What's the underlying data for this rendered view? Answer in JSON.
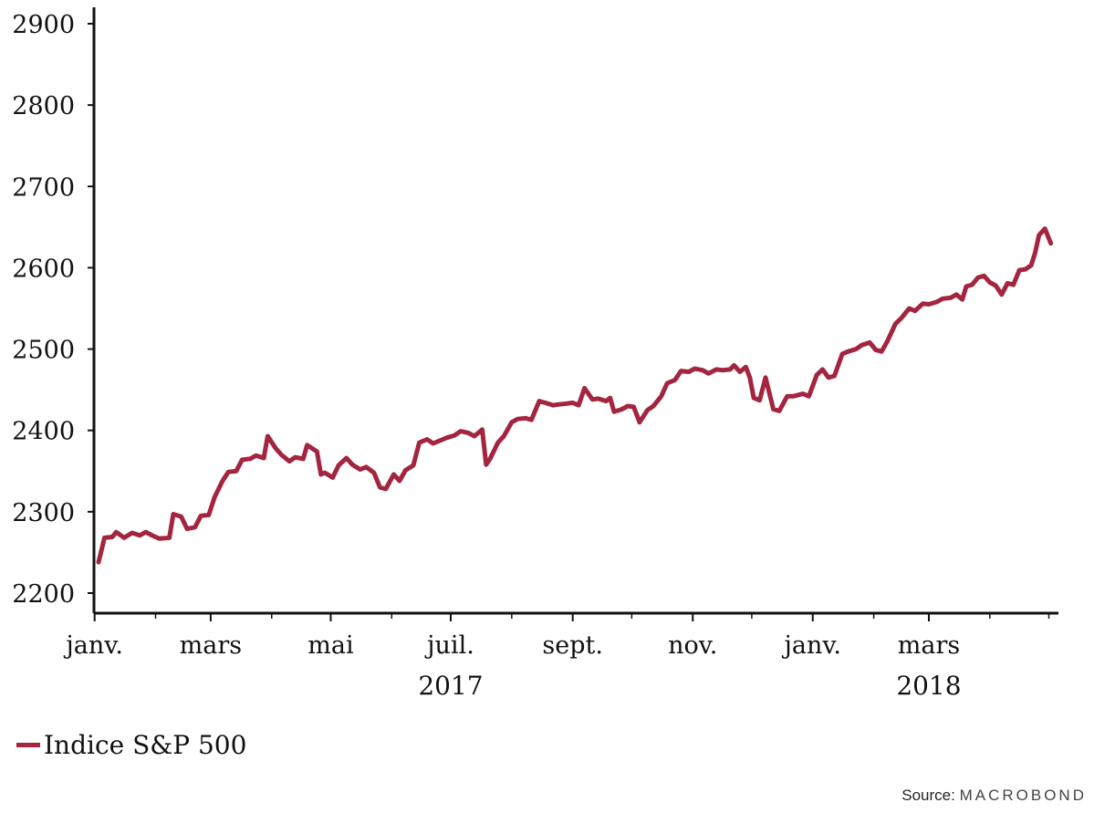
{
  "chart_data": {
    "type": "line",
    "title": "",
    "xlabel": "",
    "ylabel": "",
    "ylim": [
      2200,
      2900
    ],
    "xlim": [
      "2017-01-03",
      "2018-05-04"
    ],
    "y_ticks": [
      2200,
      2300,
      2400,
      2500,
      2600,
      2700,
      2800,
      2900
    ],
    "x_ticks": [
      {
        "date": "2017-01-01",
        "label": "janv."
      },
      {
        "date": "2017-03-01",
        "label": "mars"
      },
      {
        "date": "2017-05-01",
        "label": "mai"
      },
      {
        "date": "2017-07-01",
        "label": "juil."
      },
      {
        "date": "2017-09-01",
        "label": "sept."
      },
      {
        "date": "2017-11-01",
        "label": "nov."
      },
      {
        "date": "2018-01-01",
        "label": "janv."
      },
      {
        "date": "2018-03-01",
        "label": "mars"
      }
    ],
    "year_labels": [
      {
        "date": "2017-07-01",
        "label": "2017"
      },
      {
        "date": "2018-03-01",
        "label": "2018"
      }
    ],
    "grid": false,
    "legend_position": "bottom-left",
    "series": [
      {
        "name": "Indice S&P 500",
        "color": "#a3253f",
        "points": [
          [
            "2017-01-03",
            2238
          ],
          [
            "2017-01-06",
            2268
          ],
          [
            "2017-01-10",
            2269
          ],
          [
            "2017-01-12",
            2275
          ],
          [
            "2017-01-16",
            2268
          ],
          [
            "2017-01-20",
            2274
          ],
          [
            "2017-01-24",
            2271
          ],
          [
            "2017-01-27",
            2275
          ],
          [
            "2017-01-31",
            2270
          ],
          [
            "2017-02-03",
            2267
          ],
          [
            "2017-02-08",
            2268
          ],
          [
            "2017-02-10",
            2297
          ],
          [
            "2017-02-14",
            2294
          ],
          [
            "2017-02-17",
            2279
          ],
          [
            "2017-02-21",
            2281
          ],
          [
            "2017-02-24",
            2295
          ],
          [
            "2017-02-28",
            2296
          ],
          [
            "2017-03-03",
            2318
          ],
          [
            "2017-03-07",
            2338
          ],
          [
            "2017-03-10",
            2349
          ],
          [
            "2017-03-14",
            2350
          ],
          [
            "2017-03-17",
            2364
          ],
          [
            "2017-03-21",
            2365
          ],
          [
            "2017-03-24",
            2369
          ],
          [
            "2017-03-28",
            2366
          ],
          [
            "2017-03-30",
            2393
          ],
          [
            "2017-04-03",
            2378
          ],
          [
            "2017-04-06",
            2370
          ],
          [
            "2017-04-10",
            2362
          ],
          [
            "2017-04-13",
            2367
          ],
          [
            "2017-04-17",
            2365
          ],
          [
            "2017-04-19",
            2382
          ],
          [
            "2017-04-24",
            2374
          ],
          [
            "2017-04-26",
            2346
          ],
          [
            "2017-04-28",
            2348
          ],
          [
            "2017-05-02",
            2342
          ],
          [
            "2017-05-05",
            2357
          ],
          [
            "2017-05-09",
            2366
          ],
          [
            "2017-05-12",
            2358
          ],
          [
            "2017-05-16",
            2352
          ],
          [
            "2017-05-19",
            2355
          ],
          [
            "2017-05-23",
            2348
          ],
          [
            "2017-05-26",
            2330
          ],
          [
            "2017-05-29",
            2328
          ],
          [
            "2017-06-02",
            2346
          ],
          [
            "2017-06-05",
            2338
          ],
          [
            "2017-06-08",
            2351
          ],
          [
            "2017-06-12",
            2357
          ],
          [
            "2017-06-15",
            2385
          ],
          [
            "2017-06-19",
            2389
          ],
          [
            "2017-06-22",
            2384
          ],
          [
            "2017-06-26",
            2388
          ],
          [
            "2017-06-29",
            2391
          ],
          [
            "2017-07-03",
            2394
          ],
          [
            "2017-07-06",
            2399
          ],
          [
            "2017-07-10",
            2397
          ],
          [
            "2017-07-13",
            2393
          ],
          [
            "2017-07-17",
            2401
          ],
          [
            "2017-07-19",
            2358
          ],
          [
            "2017-07-21",
            2365
          ],
          [
            "2017-07-25",
            2385
          ],
          [
            "2017-07-28",
            2393
          ],
          [
            "2017-08-01",
            2410
          ],
          [
            "2017-08-04",
            2414
          ],
          [
            "2017-08-08",
            2415
          ],
          [
            "2017-08-11",
            2413
          ],
          [
            "2017-08-15",
            2436
          ],
          [
            "2017-08-18",
            2434
          ],
          [
            "2017-08-22",
            2431
          ],
          [
            "2017-08-25",
            2432
          ],
          [
            "2017-08-29",
            2433
          ],
          [
            "2017-09-01",
            2434
          ],
          [
            "2017-09-04",
            2431
          ],
          [
            "2017-09-07",
            2452
          ],
          [
            "2017-09-11",
            2438
          ],
          [
            "2017-09-14",
            2439
          ],
          [
            "2017-09-18",
            2436
          ],
          [
            "2017-09-20",
            2440
          ],
          [
            "2017-09-22",
            2423
          ],
          [
            "2017-09-26",
            2426
          ],
          [
            "2017-09-29",
            2430
          ],
          [
            "2017-10-02",
            2429
          ],
          [
            "2017-10-05",
            2410
          ],
          [
            "2017-10-09",
            2425
          ],
          [
            "2017-10-12",
            2430
          ],
          [
            "2017-10-16",
            2442
          ],
          [
            "2017-10-19",
            2458
          ],
          [
            "2017-10-23",
            2462
          ],
          [
            "2017-10-26",
            2473
          ],
          [
            "2017-10-30",
            2472
          ],
          [
            "2017-11-02",
            2476
          ],
          [
            "2017-11-06",
            2474
          ],
          [
            "2017-11-09",
            2470
          ],
          [
            "2017-11-13",
            2475
          ],
          [
            "2017-11-16",
            2474
          ],
          [
            "2017-11-20",
            2475
          ],
          [
            "2017-11-22",
            2480
          ],
          [
            "2017-11-25",
            2472
          ],
          [
            "2017-11-28",
            2478
          ],
          [
            "2017-11-30",
            2465
          ],
          [
            "2017-12-02",
            2440
          ],
          [
            "2017-12-05",
            2437
          ],
          [
            "2017-12-08",
            2465
          ],
          [
            "2017-12-12",
            2426
          ],
          [
            "2017-12-15",
            2424
          ],
          [
            "2017-12-19",
            2442
          ],
          [
            "2017-12-22",
            2442
          ],
          [
            "2017-12-27",
            2445
          ],
          [
            "2017-12-30",
            2442
          ],
          [
            "2018-01-03",
            2468
          ],
          [
            "2018-01-06",
            2475
          ],
          [
            "2018-01-09",
            2465
          ],
          [
            "2018-01-12",
            2467
          ],
          [
            "2018-01-16",
            2494
          ],
          [
            "2018-01-19",
            2497
          ],
          [
            "2018-01-23",
            2500
          ],
          [
            "2018-01-26",
            2505
          ],
          [
            "2018-01-30",
            2508
          ],
          [
            "2018-02-02",
            2499
          ],
          [
            "2018-02-05",
            2497
          ],
          [
            "2018-02-08",
            2510
          ],
          [
            "2018-02-12",
            2531
          ],
          [
            "2018-02-15",
            2538
          ],
          [
            "2018-02-19",
            2550
          ],
          [
            "2018-02-22",
            2547
          ],
          [
            "2018-02-26",
            2556
          ],
          [
            "2018-03-01",
            2555
          ],
          [
            "2018-03-05",
            2558
          ],
          [
            "2018-03-08",
            2562
          ],
          [
            "2018-03-12",
            2563
          ],
          [
            "2018-03-15",
            2567
          ],
          [
            "2018-03-18",
            2561
          ],
          [
            "2018-03-20",
            2577
          ],
          [
            "2018-03-23",
            2579
          ],
          [
            "2018-03-26",
            2588
          ],
          [
            "2018-03-29",
            2590
          ],
          [
            "2018-04-01",
            2582
          ],
          [
            "2018-04-04",
            2578
          ],
          [
            "2018-04-07",
            2567
          ],
          [
            "2018-04-10",
            2581
          ],
          [
            "2018-04-13",
            2579
          ],
          [
            "2018-04-16",
            2597
          ],
          [
            "2018-04-19",
            2598
          ],
          [
            "2018-04-22",
            2603
          ],
          [
            "2018-04-24",
            2618
          ],
          [
            "2018-04-26",
            2640
          ],
          [
            "2018-04-29",
            2648
          ],
          [
            "2018-05-02",
            2630
          ]
        ]
      }
    ]
  },
  "legend": {
    "label": "Indice S&P 500",
    "color": "#a3253f"
  },
  "source": {
    "prefix": "Source:",
    "brand": "MACROBOND"
  }
}
